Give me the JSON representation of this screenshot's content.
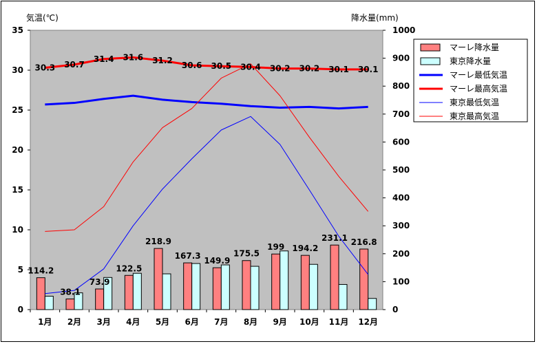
{
  "chart_data": {
    "type": "bar",
    "categories": [
      "1月",
      "2月",
      "3月",
      "4月",
      "5月",
      "6月",
      "7月",
      "8月",
      "9月",
      "10月",
      "11月",
      "12月"
    ],
    "y_left_label": "気温(℃)",
    "y_right_label": "降水量(mm)",
    "y_left_range": [
      0,
      35
    ],
    "y_left_ticks": [
      0,
      5,
      10,
      15,
      20,
      25,
      30,
      35
    ],
    "y_right_range": [
      0,
      1000
    ],
    "y_right_ticks": [
      0,
      100,
      200,
      300,
      400,
      500,
      600,
      700,
      800,
      900,
      1000
    ],
    "grid": false,
    "legend_position": "right",
    "plot_background": "#C0C0C0",
    "bar_series": [
      {
        "name": "マーレ降水量",
        "color": "#FF8080",
        "values": [
          114.2,
          38.1,
          73.9,
          122.5,
          218.9,
          167.3,
          149.9,
          175.5,
          199,
          194.2,
          231.1,
          216.8
        ],
        "labels": [
          "114.2",
          "38.1",
          "73.9",
          "122.5",
          "218.9",
          "167.3",
          "149.9",
          "175.5",
          "199",
          "194.2",
          "231.1",
          "216.8"
        ]
      },
      {
        "name": "東京降水量",
        "color": "#CCFFFF",
        "values": [
          48,
          60,
          115,
          130,
          128,
          165,
          160,
          155,
          210,
          162,
          90,
          40
        ]
      }
    ],
    "line_series": [
      {
        "name": "マーレ最低気温",
        "color": "#0000FF",
        "width": 3,
        "values": [
          25.7,
          25.9,
          26.4,
          26.8,
          26.3,
          26.0,
          25.8,
          25.5,
          25.3,
          25.4,
          25.2,
          25.4
        ]
      },
      {
        "name": "マーレ最高気温",
        "color": "#FF0000",
        "width": 3,
        "values": [
          30.3,
          30.7,
          31.4,
          31.6,
          31.2,
          30.6,
          30.5,
          30.4,
          30.2,
          30.2,
          30.1,
          30.1
        ],
        "labels": [
          "30.3",
          "30.7",
          "31.4",
          "31.6",
          "31.2",
          "30.6",
          "30.5",
          "30.4",
          "30.2",
          "30.2",
          "30.1",
          "30.1"
        ]
      },
      {
        "name": "東京最低気温",
        "color": "#0000FF",
        "width": 1,
        "values": [
          2.0,
          2.4,
          5.1,
          10.5,
          15.1,
          18.9,
          22.5,
          24.2,
          20.7,
          15.0,
          9.2,
          4.4
        ]
      },
      {
        "name": "東京最高気温",
        "color": "#FF0000",
        "width": 1,
        "values": [
          9.8,
          10.0,
          12.9,
          18.5,
          22.8,
          25.2,
          29.0,
          30.8,
          26.8,
          21.6,
          16.7,
          12.3
        ]
      }
    ]
  }
}
